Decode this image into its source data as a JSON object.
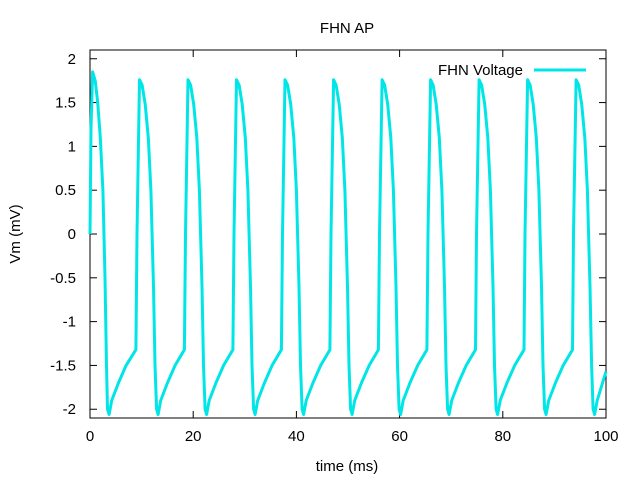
{
  "chart_data": {
    "type": "line",
    "title": "FHN AP",
    "xlabel": "time (ms)",
    "ylabel": "Vm (mV)",
    "xlim": [
      0,
      100
    ],
    "ylim": [
      -2.1,
      2.1
    ],
    "xticks": [
      0,
      20,
      40,
      60,
      80,
      100
    ],
    "xtick_labels": [
      "0",
      "20",
      "40",
      "60",
      "80",
      "100"
    ],
    "yticks": [
      -2,
      -1.5,
      -1,
      -0.5,
      0,
      0.5,
      1,
      1.5,
      2
    ],
    "ytick_labels": [
      "-2",
      "-1.5",
      "-1",
      "-0.5",
      "0",
      "0.5",
      "1",
      "1.5",
      "2"
    ],
    "grid": false,
    "legend_position": "top-right",
    "series": [
      {
        "name": "FHN Voltage",
        "color": "#00e5e5",
        "points": [
          [
            0.0,
            0.0
          ],
          [
            0.2,
            1.2
          ],
          [
            0.5,
            1.85
          ],
          [
            1.0,
            1.75
          ],
          [
            1.5,
            1.5
          ],
          [
            2.0,
            1.1
          ],
          [
            2.5,
            0.5
          ],
          [
            2.9,
            -0.5
          ],
          [
            3.2,
            -1.5
          ],
          [
            3.4,
            -2.0
          ],
          [
            3.7,
            -2.06
          ],
          [
            4.2,
            -1.9
          ],
          [
            5.5,
            -1.7
          ],
          [
            7.0,
            -1.5
          ],
          [
            8.9,
            -1.32
          ],
          [
            9.1,
            0.0
          ],
          [
            9.6,
            1.76
          ],
          [
            10.1,
            1.7
          ],
          [
            10.7,
            1.48
          ],
          [
            11.3,
            1.1
          ],
          [
            11.8,
            0.5
          ],
          [
            12.3,
            -0.6
          ],
          [
            12.6,
            -1.5
          ],
          [
            12.9,
            -2.0
          ],
          [
            13.2,
            -2.06
          ],
          [
            13.7,
            -1.9
          ],
          [
            15.0,
            -1.7
          ],
          [
            16.5,
            -1.5
          ],
          [
            18.3,
            -1.32
          ],
          [
            18.5,
            0.0
          ],
          [
            19.0,
            1.76
          ],
          [
            19.5,
            1.7
          ],
          [
            20.1,
            1.48
          ],
          [
            20.7,
            1.1
          ],
          [
            21.2,
            0.5
          ],
          [
            21.7,
            -0.6
          ],
          [
            22.0,
            -1.5
          ],
          [
            22.3,
            -2.0
          ],
          [
            22.6,
            -2.06
          ],
          [
            23.1,
            -1.9
          ],
          [
            24.4,
            -1.7
          ],
          [
            25.9,
            -1.5
          ],
          [
            27.7,
            -1.32
          ],
          [
            27.9,
            0.0
          ],
          [
            28.4,
            1.76
          ],
          [
            28.9,
            1.7
          ],
          [
            29.5,
            1.48
          ],
          [
            30.1,
            1.1
          ],
          [
            30.6,
            0.5
          ],
          [
            31.1,
            -0.6
          ],
          [
            31.4,
            -1.5
          ],
          [
            31.7,
            -2.0
          ],
          [
            32.0,
            -2.06
          ],
          [
            32.5,
            -1.9
          ],
          [
            33.8,
            -1.7
          ],
          [
            35.3,
            -1.5
          ],
          [
            37.1,
            -1.32
          ],
          [
            37.3,
            0.0
          ],
          [
            37.8,
            1.76
          ],
          [
            38.3,
            1.7
          ],
          [
            38.9,
            1.48
          ],
          [
            39.5,
            1.1
          ],
          [
            40.0,
            0.5
          ],
          [
            40.5,
            -0.6
          ],
          [
            40.8,
            -1.5
          ],
          [
            41.1,
            -2.0
          ],
          [
            41.4,
            -2.06
          ],
          [
            41.9,
            -1.9
          ],
          [
            43.2,
            -1.7
          ],
          [
            44.7,
            -1.5
          ],
          [
            46.5,
            -1.32
          ],
          [
            46.7,
            0.0
          ],
          [
            47.2,
            1.76
          ],
          [
            47.7,
            1.7
          ],
          [
            48.3,
            1.48
          ],
          [
            48.9,
            1.1
          ],
          [
            49.4,
            0.5
          ],
          [
            49.9,
            -0.6
          ],
          [
            50.2,
            -1.5
          ],
          [
            50.5,
            -2.0
          ],
          [
            50.8,
            -2.06
          ],
          [
            51.3,
            -1.9
          ],
          [
            52.6,
            -1.7
          ],
          [
            54.1,
            -1.5
          ],
          [
            55.9,
            -1.32
          ],
          [
            56.1,
            0.0
          ],
          [
            56.6,
            1.76
          ],
          [
            57.1,
            1.7
          ],
          [
            57.7,
            1.48
          ],
          [
            58.3,
            1.1
          ],
          [
            58.8,
            0.5
          ],
          [
            59.3,
            -0.6
          ],
          [
            59.6,
            -1.5
          ],
          [
            59.9,
            -2.0
          ],
          [
            60.2,
            -2.06
          ],
          [
            60.7,
            -1.9
          ],
          [
            62.0,
            -1.7
          ],
          [
            63.5,
            -1.5
          ],
          [
            65.3,
            -1.32
          ],
          [
            65.5,
            0.0
          ],
          [
            66.0,
            1.76
          ],
          [
            66.5,
            1.7
          ],
          [
            67.1,
            1.48
          ],
          [
            67.7,
            1.1
          ],
          [
            68.2,
            0.5
          ],
          [
            68.7,
            -0.6
          ],
          [
            69.0,
            -1.5
          ],
          [
            69.3,
            -2.0
          ],
          [
            69.6,
            -2.06
          ],
          [
            70.1,
            -1.9
          ],
          [
            71.4,
            -1.7
          ],
          [
            72.9,
            -1.5
          ],
          [
            74.7,
            -1.32
          ],
          [
            74.9,
            0.0
          ],
          [
            75.4,
            1.76
          ],
          [
            75.9,
            1.7
          ],
          [
            76.5,
            1.48
          ],
          [
            77.1,
            1.1
          ],
          [
            77.6,
            0.5
          ],
          [
            78.1,
            -0.6
          ],
          [
            78.4,
            -1.5
          ],
          [
            78.7,
            -2.0
          ],
          [
            79.0,
            -2.06
          ],
          [
            79.5,
            -1.9
          ],
          [
            80.8,
            -1.7
          ],
          [
            82.3,
            -1.5
          ],
          [
            84.1,
            -1.32
          ],
          [
            84.3,
            0.0
          ],
          [
            84.8,
            1.76
          ],
          [
            85.3,
            1.7
          ],
          [
            85.9,
            1.48
          ],
          [
            86.5,
            1.1
          ],
          [
            87.0,
            0.5
          ],
          [
            87.5,
            -0.6
          ],
          [
            87.8,
            -1.5
          ],
          [
            88.1,
            -2.0
          ],
          [
            88.4,
            -2.06
          ],
          [
            88.9,
            -1.9
          ],
          [
            90.2,
            -1.7
          ],
          [
            91.7,
            -1.5
          ],
          [
            93.5,
            -1.32
          ],
          [
            93.7,
            0.0
          ],
          [
            94.2,
            1.76
          ],
          [
            94.7,
            1.7
          ],
          [
            95.3,
            1.48
          ],
          [
            95.9,
            1.1
          ],
          [
            96.4,
            0.5
          ],
          [
            96.9,
            -0.6
          ],
          [
            97.2,
            -1.5
          ],
          [
            97.5,
            -2.0
          ],
          [
            97.8,
            -2.06
          ],
          [
            98.3,
            -1.9
          ],
          [
            100.0,
            -1.57
          ]
        ]
      }
    ]
  }
}
